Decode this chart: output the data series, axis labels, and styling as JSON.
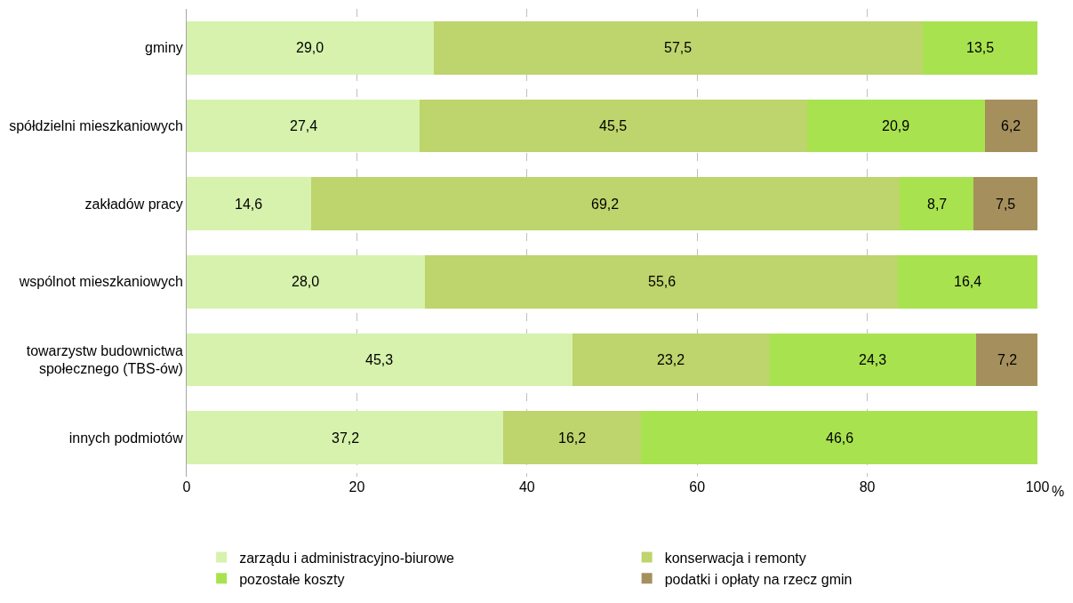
{
  "chart_data": {
    "type": "bar",
    "orientation": "horizontal",
    "stacked": true,
    "grid": "x",
    "legend": "bottom",
    "xlabel": "%",
    "categories": [
      "gminy",
      "spółdzielni mieszkaniowych",
      "zakładów pracy",
      "wspólnot mieszkaniowych",
      "towarzystw budownictwa\nspołecznego (TBS-ów)",
      "innych podmiotów"
    ],
    "xlim": [
      0,
      100
    ],
    "xticks": [
      0,
      20,
      40,
      60,
      80,
      100
    ],
    "series": [
      {
        "name": "zarządu i administracyjno-biurowe",
        "color": "#d6f2ad",
        "values": [
          29.0,
          27.4,
          14.6,
          28.0,
          45.3,
          37.2
        ],
        "value_labels": [
          "29,0",
          "27,4",
          "14,6",
          "28,0",
          "45,3",
          "37,2"
        ]
      },
      {
        "name": "konserwacja i remonty",
        "color": "#bed46c",
        "values": [
          57.5,
          45.5,
          69.2,
          55.6,
          23.2,
          16.2
        ],
        "value_labels": [
          "57,5",
          "45,5",
          "69,2",
          "55,6",
          "23,2",
          "16,2"
        ]
      },
      {
        "name": "pozostałe koszty",
        "color": "#a8e34f",
        "values": [
          13.5,
          20.9,
          8.7,
          16.4,
          24.3,
          46.6
        ],
        "value_labels": [
          "13,5",
          "20,9",
          "8,7",
          "16,4",
          "24,3",
          "46,6"
        ]
      },
      {
        "name": "podatki i opłaty na rzecz gmin",
        "color": "#a58f5c",
        "values": [
          null,
          6.2,
          7.5,
          null,
          7.2,
          null
        ],
        "value_labels": [
          null,
          "6,2",
          "7,5",
          null,
          "7,2",
          null
        ]
      }
    ]
  }
}
